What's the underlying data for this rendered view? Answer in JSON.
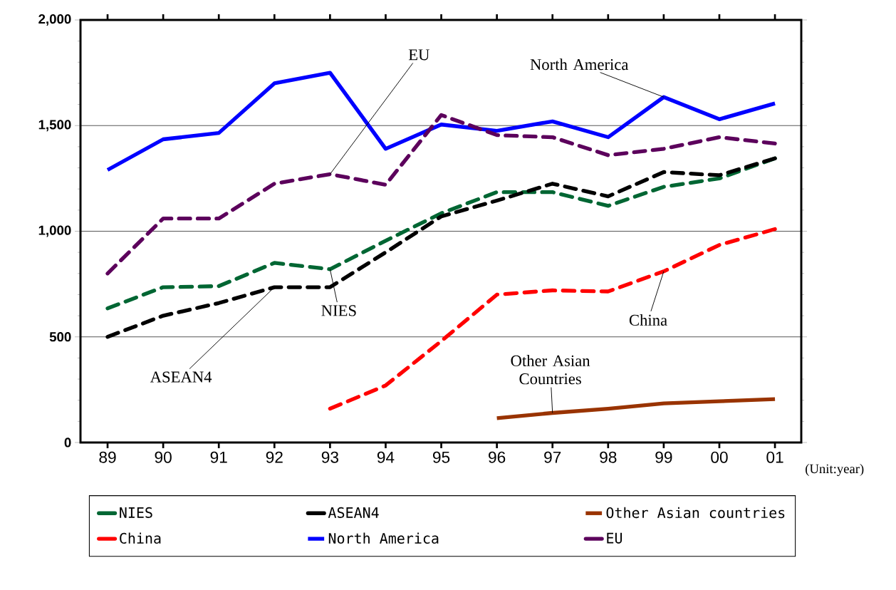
{
  "chart_data": {
    "type": "line",
    "categories": [
      "89",
      "90",
      "91",
      "92",
      "93",
      "94",
      "95",
      "96",
      "97",
      "98",
      "99",
      "00",
      "01"
    ],
    "series": [
      {
        "name": "NIES",
        "color": "#006633",
        "line_style": "dashed",
        "values": [
          635,
          735,
          740,
          850,
          820,
          955,
          1085,
          1185,
          1185,
          1120,
          1210,
          1250,
          1345
        ]
      },
      {
        "name": "ASEAN4",
        "color": "#000000",
        "line_style": "dashed",
        "values": [
          500,
          600,
          660,
          735,
          735,
          900,
          1070,
          1145,
          1225,
          1165,
          1280,
          1265,
          1345
        ]
      },
      {
        "name": "Other Asian countries",
        "color": "#993300",
        "line_style": "solid",
        "values": [
          null,
          null,
          null,
          null,
          null,
          null,
          null,
          115,
          140,
          160,
          185,
          195,
          205
        ]
      },
      {
        "name": "China",
        "color": "#ff0000",
        "line_style": "dashed",
        "values": [
          null,
          null,
          null,
          null,
          160,
          270,
          480,
          700,
          720,
          715,
          810,
          935,
          1010
        ]
      },
      {
        "name": "North America",
        "color": "#0000ff",
        "line_style": "solid",
        "values": [
          1290,
          1435,
          1465,
          1700,
          1750,
          1390,
          1505,
          1475,
          1520,
          1445,
          1635,
          1530,
          1605
        ]
      },
      {
        "name": "EU",
        "color": "#5c005c",
        "line_style": "dashed",
        "values": [
          800,
          1060,
          1060,
          1225,
          1270,
          1220,
          1550,
          1455,
          1445,
          1360,
          1390,
          1445,
          1415
        ]
      }
    ],
    "ylim": [
      0,
      2000
    ],
    "yticks": [
      0,
      500,
      {
        "value": 1000,
        "label": "1,000"
      },
      {
        "value": 1500,
        "label": "1,500"
      },
      {
        "value": 2000,
        "label": "2,000"
      }
    ],
    "grid": "y",
    "legend": "bottom",
    "marker": "none",
    "annotations": [
      {
        "text": "EU",
        "x": "93",
        "y": 1270
      },
      {
        "text": "North America",
        "x": "99",
        "y": 1635
      },
      {
        "text": "NIES",
        "x": "93",
        "y": 820
      },
      {
        "text": "ASEAN4",
        "x": "92",
        "y": 735
      },
      {
        "text": "China",
        "x": "99",
        "y": 810
      },
      {
        "text": "Other Asian Countries",
        "x": "97",
        "y": 140
      },
      "(Unit:year)"
    ]
  }
}
